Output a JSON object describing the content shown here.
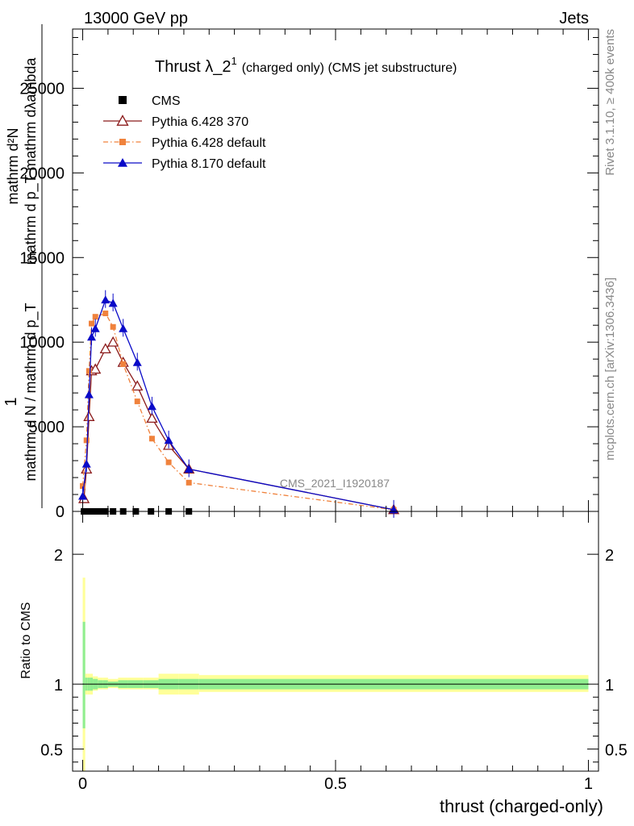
{
  "header": {
    "left": "13000 GeV pp",
    "right": "Jets"
  },
  "side_labels": {
    "rivet": "Rivet 3.1.10, ≥ 400k events",
    "mcplots": "mcplots.cern.ch [arXiv:1306.3436]"
  },
  "colors": {
    "cms": "#000000",
    "pythia6_370": "#8b1a1a",
    "pythia6_default": "#f0823c",
    "pythia8_default": "#0a0ac8",
    "band_inner": "#90ee90",
    "band_outer": "#ffff99"
  },
  "chart_data": [
    {
      "type": "line",
      "title": "Thrust λ_2",
      "title_superscript": "1",
      "title_suffix": "(charged only) (CMS jet substructure)",
      "ylabel_top": "1",
      "ylabel_numerator_line1": "mathrm d²N",
      "ylabel_numerator_line2": "mathrm d p_T mathrm dλambda",
      "ylabel_denominator": "mathrm d N / mathrm d p_T",
      "watermark": "CMS_2021_I1920187",
      "xlim": [
        -0.02,
        1.02
      ],
      "ylim": [
        0,
        28500
      ],
      "yticks": [
        0,
        5000,
        10000,
        15000,
        20000,
        25000
      ],
      "ytick_labels": [
        "0",
        "5000",
        "10000",
        "15000",
        "20000",
        "25000"
      ],
      "legend_position": "top-left",
      "series": [
        {
          "name": "CMS",
          "marker": "square",
          "x": [
            0.0025,
            0.0075,
            0.0125,
            0.0175,
            0.025,
            0.035,
            0.045,
            0.06,
            0.08,
            0.105,
            0.135,
            0.17,
            0.21
          ],
          "y": [
            0,
            0,
            0,
            0,
            0,
            0,
            0,
            0,
            0,
            0,
            0,
            0,
            0
          ]
        },
        {
          "name": "Pythia 6.428 370",
          "marker": "open-triangle",
          "x": [
            0.0025,
            0.0075,
            0.0125,
            0.0175,
            0.025,
            0.045,
            0.06,
            0.08,
            0.108,
            0.137,
            0.17,
            0.21,
            0.615
          ],
          "y": [
            750,
            2500,
            5600,
            8300,
            8400,
            9600,
            10000,
            8800,
            7400,
            5500,
            3900,
            2500,
            100
          ]
        },
        {
          "name": "Pythia 6.428 default",
          "marker": "filled-square",
          "x": [
            0.0,
            0.0075,
            0.0125,
            0.0175,
            0.025,
            0.045,
            0.06,
            0.08,
            0.108,
            0.137,
            0.17,
            0.21,
            0.615
          ],
          "y": [
            1500,
            4200,
            8300,
            11100,
            11500,
            11700,
            10900,
            8700,
            6500,
            4300,
            2900,
            1700,
            100
          ]
        },
        {
          "name": "Pythia 8.170 default",
          "marker": "filled-triangle",
          "x": [
            0.0,
            0.0075,
            0.0125,
            0.0175,
            0.025,
            0.045,
            0.06,
            0.08,
            0.108,
            0.137,
            0.17,
            0.21,
            0.615
          ],
          "y": [
            900,
            2800,
            6900,
            10300,
            10800,
            12500,
            12300,
            10800,
            8800,
            6200,
            4200,
            2500,
            100
          ]
        }
      ]
    },
    {
      "type": "area",
      "ylabel": "Ratio to CMS",
      "xlabel": "thrust (charged-only)",
      "xlim": [
        -0.02,
        1.02
      ],
      "ylim": [
        0.33,
        2.33
      ],
      "xticks": [
        0,
        0.5,
        1
      ],
      "xtick_labels": [
        "0",
        "0.5",
        "1"
      ],
      "yticks": [
        0.5,
        1,
        2
      ],
      "ytick_labels": [
        "0.5",
        "1",
        "2"
      ],
      "reference": 1,
      "bins": [
        0,
        0.005,
        0.01,
        0.015,
        0.02,
        0.03,
        0.04,
        0.05,
        0.07,
        0.09,
        0.12,
        0.15,
        0.19,
        0.23,
        1.0
      ],
      "inner_low": [
        0.66,
        0.95,
        0.95,
        0.95,
        0.96,
        0.97,
        0.97,
        0.98,
        0.97,
        0.97,
        0.97,
        0.96,
        0.96,
        0.96
      ],
      "inner_high": [
        1.48,
        1.05,
        1.05,
        1.05,
        1.04,
        1.03,
        1.03,
        1.02,
        1.03,
        1.03,
        1.03,
        1.04,
        1.04,
        1.04
      ],
      "outer_low": [
        0.33,
        0.92,
        0.92,
        0.92,
        0.95,
        0.96,
        0.96,
        0.97,
        0.96,
        0.96,
        0.96,
        0.92,
        0.92,
        0.94
      ],
      "outer_high": [
        1.82,
        1.08,
        1.08,
        1.08,
        1.06,
        1.05,
        1.05,
        1.04,
        1.05,
        1.05,
        1.05,
        1.08,
        1.08,
        1.07
      ]
    }
  ]
}
